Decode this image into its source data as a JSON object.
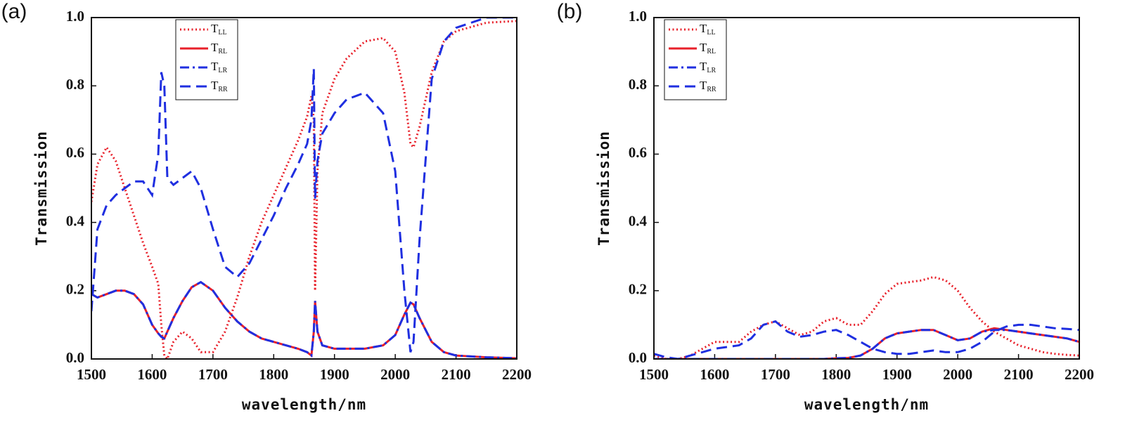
{
  "chart_data": [
    {
      "type": "line",
      "label": "(a)",
      "xlabel": "wavelength/nm",
      "ylabel": "Transmission",
      "xlim": [
        1500,
        2200
      ],
      "ylim": [
        0,
        1
      ],
      "xticks": [
        1500,
        1600,
        1700,
        1800,
        1900,
        2000,
        2100,
        2200
      ],
      "yticks": [
        {
          "value": 0,
          "label": "0.0"
        },
        {
          "value": 0.2,
          "label": "0.2"
        },
        {
          "value": 0.4,
          "label": "0.4"
        },
        {
          "value": 0.6,
          "label": "0.6"
        },
        {
          "value": 0.8,
          "label": "0.8"
        },
        {
          "value": 1,
          "label": "1.0"
        }
      ],
      "legend": "upper left",
      "x": [
        1500,
        1510,
        1525,
        1540,
        1555,
        1570,
        1585,
        1600,
        1610,
        1615,
        1620,
        1625,
        1635,
        1650,
        1665,
        1680,
        1700,
        1720,
        1740,
        1760,
        1780,
        1800,
        1820,
        1840,
        1855,
        1862,
        1866,
        1868,
        1872,
        1880,
        1900,
        1920,
        1950,
        1980,
        2000,
        2015,
        2025,
        2030,
        2040,
        2060,
        2080,
        2100,
        2150,
        2200
      ],
      "series": [
        {
          "name": "TLL",
          "color": "#e8202a",
          "style": "dotted",
          "values": [
            0.46,
            0.57,
            0.62,
            0.58,
            0.5,
            0.42,
            0.34,
            0.27,
            0.22,
            0.1,
            0.01,
            0,
            0.05,
            0.08,
            0.06,
            0.02,
            0.02,
            0.08,
            0.18,
            0.3,
            0.4,
            0.48,
            0.56,
            0.64,
            0.71,
            0.77,
            0.7,
            0.2,
            0.55,
            0.72,
            0.82,
            0.88,
            0.93,
            0.94,
            0.9,
            0.78,
            0.63,
            0.62,
            0.68,
            0.84,
            0.93,
            0.96,
            0.985,
            0.99
          ]
        },
        {
          "name": "TRL",
          "color": "#e8202a",
          "style": "solid",
          "values": [
            0.19,
            0.18,
            0.19,
            0.2,
            0.2,
            0.19,
            0.16,
            0.1,
            0.075,
            0.065,
            0.06,
            0.08,
            0.12,
            0.17,
            0.21,
            0.225,
            0.2,
            0.15,
            0.11,
            0.08,
            0.06,
            0.05,
            0.04,
            0.03,
            0.02,
            0.01,
            0.08,
            0.17,
            0.08,
            0.04,
            0.03,
            0.03,
            0.03,
            0.04,
            0.07,
            0.13,
            0.165,
            0.16,
            0.12,
            0.05,
            0.02,
            0.01,
            0.005,
            0.002
          ]
        },
        {
          "name": "TLR",
          "color": "#1f2fe0",
          "style": "dash-dot",
          "values": [
            0.19,
            0.18,
            0.19,
            0.2,
            0.2,
            0.19,
            0.16,
            0.1,
            0.075,
            0.065,
            0.06,
            0.08,
            0.12,
            0.17,
            0.21,
            0.225,
            0.2,
            0.15,
            0.11,
            0.08,
            0.06,
            0.05,
            0.04,
            0.03,
            0.02,
            0.01,
            0.08,
            0.17,
            0.08,
            0.04,
            0.03,
            0.03,
            0.03,
            0.04,
            0.07,
            0.13,
            0.165,
            0.16,
            0.12,
            0.05,
            0.02,
            0.01,
            0.005,
            0.002
          ]
        },
        {
          "name": "TRR",
          "color": "#1f2fe0",
          "style": "dashed",
          "values": [
            0.14,
            0.38,
            0.45,
            0.48,
            0.5,
            0.52,
            0.52,
            0.48,
            0.6,
            0.84,
            0.8,
            0.53,
            0.51,
            0.53,
            0.55,
            0.5,
            0.38,
            0.27,
            0.24,
            0.28,
            0.35,
            0.42,
            0.5,
            0.57,
            0.63,
            0.7,
            0.85,
            0.47,
            0.58,
            0.66,
            0.72,
            0.76,
            0.78,
            0.72,
            0.55,
            0.2,
            0.02,
            0.05,
            0.35,
            0.82,
            0.93,
            0.97,
            1,
            1
          ]
        }
      ]
    },
    {
      "type": "line",
      "label": "(b)",
      "xlabel": "wavelength/nm",
      "ylabel": "Transmission",
      "xlim": [
        1500,
        2200
      ],
      "ylim": [
        0,
        1
      ],
      "xticks": [
        1500,
        1600,
        1700,
        1800,
        1900,
        2000,
        2100,
        2200
      ],
      "yticks": [
        {
          "value": 0,
          "label": "0.0"
        },
        {
          "value": 0.2,
          "label": "0.2"
        },
        {
          "value": 0.4,
          "label": "0.4"
        },
        {
          "value": 0.6,
          "label": "0.6"
        },
        {
          "value": 0.8,
          "label": "0.8"
        },
        {
          "value": 1,
          "label": "1.0"
        }
      ],
      "legend": "upper left",
      "x": [
        1500,
        1520,
        1540,
        1560,
        1580,
        1600,
        1620,
        1640,
        1660,
        1680,
        1700,
        1720,
        1740,
        1760,
        1780,
        1800,
        1820,
        1840,
        1860,
        1880,
        1900,
        1920,
        1940,
        1960,
        1980,
        2000,
        2020,
        2040,
        2060,
        2080,
        2100,
        2120,
        2140,
        2160,
        2180,
        2200
      ],
      "series": [
        {
          "name": "TLL",
          "color": "#e8202a",
          "style": "dotted",
          "values": [
            0.01,
            0,
            0,
            0.01,
            0.03,
            0.05,
            0.05,
            0.05,
            0.08,
            0.1,
            0.11,
            0.09,
            0.07,
            0.08,
            0.11,
            0.12,
            0.1,
            0.1,
            0.14,
            0.19,
            0.22,
            0.225,
            0.23,
            0.24,
            0.23,
            0.2,
            0.15,
            0.11,
            0.08,
            0.06,
            0.04,
            0.03,
            0.02,
            0.015,
            0.012,
            0.01
          ]
        },
        {
          "name": "TRL",
          "color": "#e8202a",
          "style": "solid",
          "values": [
            0,
            0,
            0,
            0,
            0,
            0,
            0,
            0,
            0,
            0,
            0,
            0,
            0,
            0,
            0,
            0.002,
            0.003,
            0.01,
            0.03,
            0.06,
            0.075,
            0.08,
            0.085,
            0.085,
            0.07,
            0.055,
            0.06,
            0.08,
            0.09,
            0.085,
            0.08,
            0.075,
            0.07,
            0.065,
            0.06,
            0.05
          ]
        },
        {
          "name": "TLR",
          "color": "#1f2fe0",
          "style": "dash-dot",
          "values": [
            0,
            0,
            0,
            0,
            0,
            0,
            0,
            0,
            0,
            0,
            0,
            0,
            0,
            0,
            0,
            0.002,
            0.003,
            0.01,
            0.03,
            0.06,
            0.075,
            0.08,
            0.085,
            0.085,
            0.07,
            0.055,
            0.06,
            0.08,
            0.085,
            0.085,
            0.08,
            0.075,
            0.07,
            0.065,
            0.06,
            0.05
          ]
        },
        {
          "name": "TRR",
          "color": "#1f2fe0",
          "style": "dashed",
          "values": [
            0.015,
            0.005,
            0,
            0.01,
            0.02,
            0.03,
            0.035,
            0.04,
            0.06,
            0.1,
            0.11,
            0.08,
            0.065,
            0.07,
            0.08,
            0.085,
            0.07,
            0.05,
            0.03,
            0.02,
            0.015,
            0.015,
            0.02,
            0.025,
            0.02,
            0.02,
            0.03,
            0.05,
            0.08,
            0.095,
            0.1,
            0.1,
            0.095,
            0.09,
            0.088,
            0.085
          ]
        }
      ]
    }
  ]
}
